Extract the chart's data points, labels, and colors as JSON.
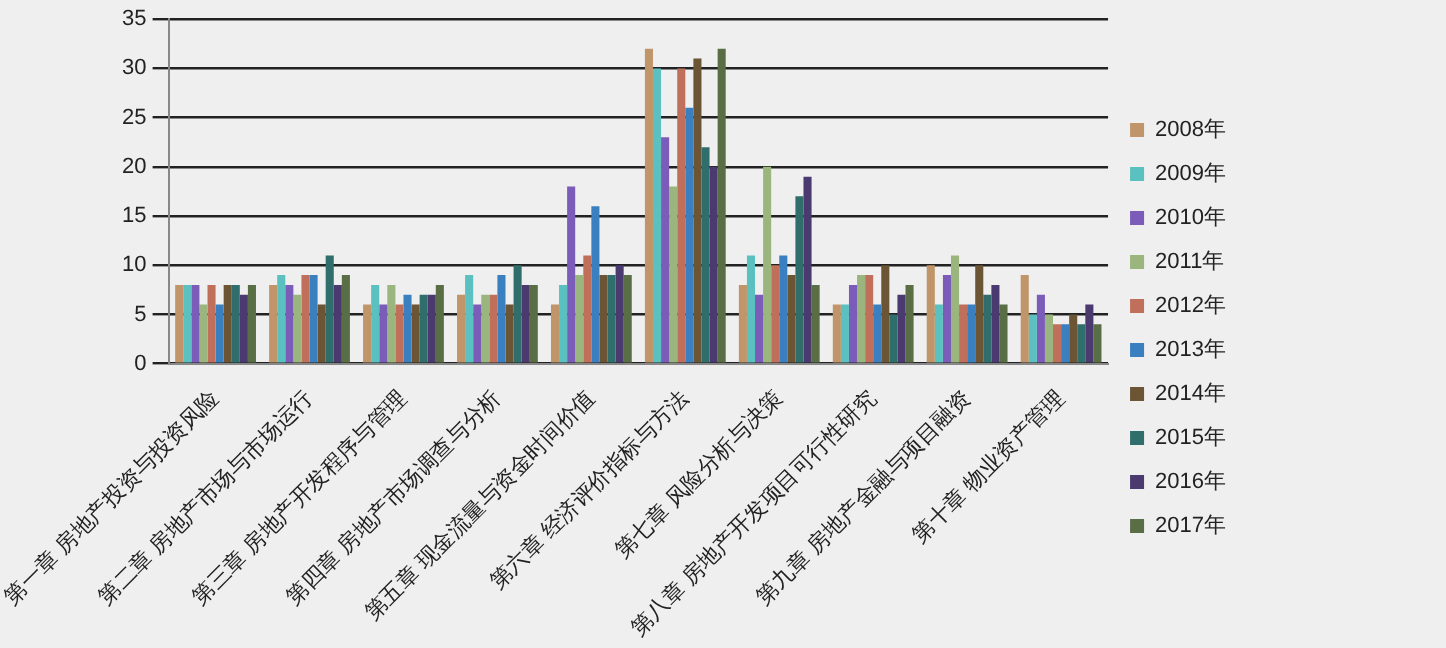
{
  "chart_data": {
    "type": "bar",
    "categories": [
      "第一章 房地产投资与投资风险",
      "第二章 房地产市场与市场运行",
      "第三章 房地产开发程序与管理",
      "第四章 房地产市场调查与分析",
      "第五章 现金流量与资金时间价值",
      "第六章 经济评价指标与方法",
      "第七章 风险分析与决策",
      "第八章 房地产开发项目可行性研究",
      "第九章 房地产金融与项目融资",
      "第十章 物业资产管理"
    ],
    "series": [
      {
        "name": "2008年",
        "color": "#c0956a",
        "values": [
          8,
          8,
          6,
          7,
          6,
          32,
          8,
          6,
          10,
          9
        ]
      },
      {
        "name": "2009年",
        "color": "#5bc0c0",
        "values": [
          8,
          9,
          8,
          9,
          8,
          30,
          11,
          6,
          6,
          5
        ]
      },
      {
        "name": "2010年",
        "color": "#7b5cb8",
        "values": [
          8,
          8,
          6,
          6,
          18,
          23,
          7,
          8,
          9,
          7
        ]
      },
      {
        "name": "2011年",
        "color": "#9bb57f",
        "values": [
          6,
          7,
          8,
          7,
          9,
          18,
          20,
          9,
          11,
          5
        ]
      },
      {
        "name": "2012年",
        "color": "#c0705a",
        "values": [
          8,
          9,
          6,
          7,
          11,
          30,
          10,
          9,
          6,
          4
        ]
      },
      {
        "name": "2013年",
        "color": "#3a7fc0",
        "values": [
          6,
          9,
          7,
          9,
          16,
          26,
          11,
          6,
          6,
          4
        ]
      },
      {
        "name": "2014年",
        "color": "#6b5535",
        "values": [
          8,
          6,
          6,
          6,
          9,
          31,
          9,
          10,
          10,
          5
        ]
      },
      {
        "name": "2015年",
        "color": "#2f6e6a",
        "values": [
          8,
          11,
          7,
          10,
          9,
          22,
          17,
          5,
          7,
          4
        ]
      },
      {
        "name": "2016年",
        "color": "#4a3a70",
        "values": [
          7,
          8,
          7,
          8,
          10,
          20,
          19,
          7,
          8,
          6
        ]
      },
      {
        "name": "2017年",
        "color": "#5a6e45",
        "values": [
          8,
          9,
          8,
          8,
          9,
          32,
          8,
          8,
          6,
          4
        ]
      }
    ],
    "ylim": [
      0,
      35
    ],
    "yticks": [
      0,
      5,
      10,
      15,
      20,
      25,
      30,
      35
    ],
    "grid": "y",
    "legend": "right"
  }
}
